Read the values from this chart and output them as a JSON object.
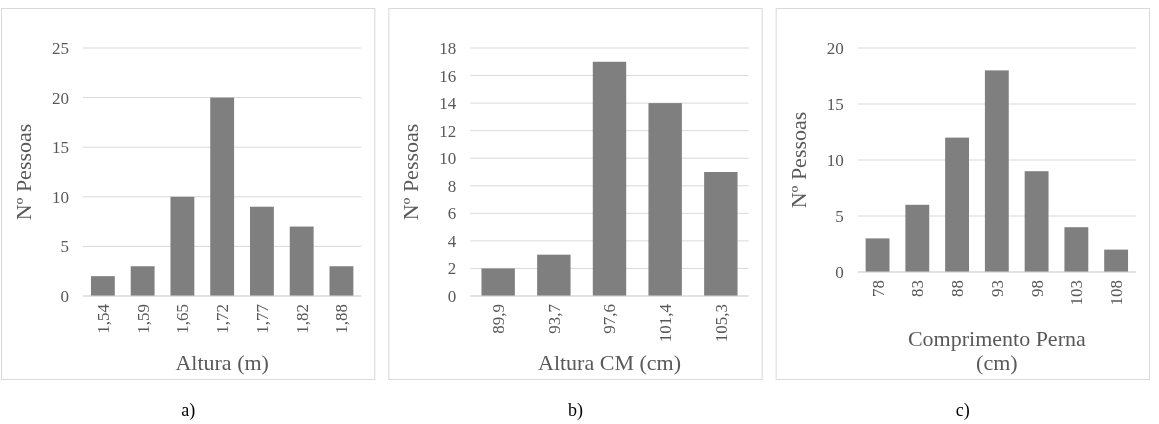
{
  "chart_data": [
    {
      "type": "bar",
      "categories": [
        "1,54",
        "1,59",
        "1,65",
        "1,72",
        "1,77",
        "1,82",
        "1,88"
      ],
      "values": [
        2,
        3,
        10,
        20,
        9,
        7,
        3
      ],
      "color": "#7f7f7f",
      "xlabel": "Altura (m)",
      "ylabel": "Nº Pessoas",
      "ylim": [
        0,
        25
      ],
      "yticks": [
        0,
        5,
        10,
        15,
        20,
        25
      ],
      "grid": "y",
      "annotations": [
        "a)"
      ]
    },
    {
      "type": "bar",
      "categories": [
        "89,9",
        "93,7",
        "97,6",
        "101,4",
        "105,3"
      ],
      "values": [
        2,
        3,
        17,
        14,
        9
      ],
      "color": "#7f7f7f",
      "xlabel": "Altura CM (cm)",
      "ylabel": "Nº Pessoas",
      "ylim": [
        0,
        18
      ],
      "yticks": [
        0,
        2,
        4,
        6,
        8,
        10,
        12,
        14,
        16,
        18
      ],
      "grid": "y",
      "annotations": [
        "b)"
      ]
    },
    {
      "type": "bar",
      "categories": [
        "78",
        "83",
        "88",
        "93",
        "98",
        "103",
        "108"
      ],
      "values": [
        3,
        6,
        12,
        18,
        9,
        4,
        2
      ],
      "color": "#7f7f7f",
      "xlabel": "Comprimento Perna (cm)",
      "ylabel": "Nº Pessoas",
      "ylim": [
        0,
        20
      ],
      "yticks": [
        0,
        5,
        10,
        15,
        20
      ],
      "grid": "y",
      "annotations": [
        "c)"
      ]
    }
  ]
}
